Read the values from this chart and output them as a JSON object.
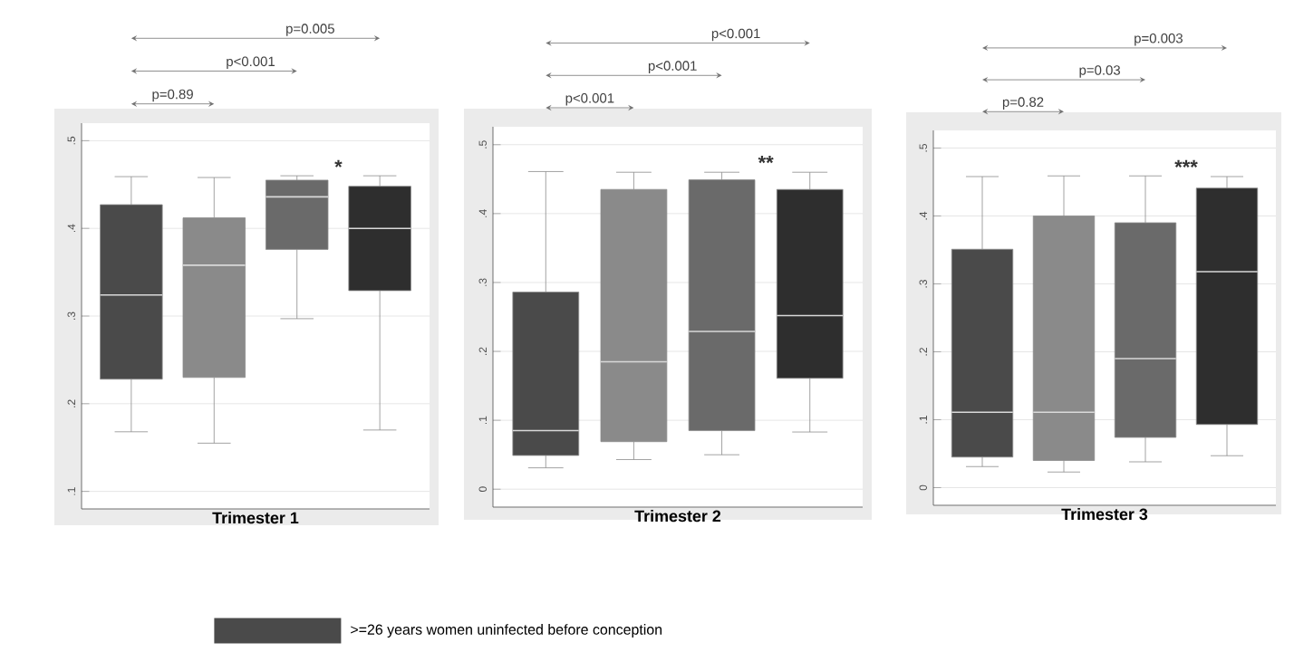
{
  "chart_data": [
    {
      "type": "box",
      "xlabel": "**Trimester 1**",
      "categories": [
        null
      ],
      "legend": "bottom",
      "grid": "y",
      "ylim": [
        0.08,
        0.52
      ],
      "yticks": [
        {
          "value": 0.1,
          "label": ".1"
        },
        {
          "value": 0.2,
          "label": ".2"
        },
        {
          "value": 0.3,
          "label": ".3"
        },
        {
          "value": 0.4,
          "label": ".4"
        },
        {
          "value": 0.5,
          "label": ".5"
        }
      ],
      "annotations": [
        "p=0.89",
        "p<0.001",
        "p=0.005",
        "*"
      ],
      "series": [
        {
          "name": ">=26 years women uninfected before conception",
          "color": "#4a4a4a",
          "boxes": [
            {
              "low": 0.168,
              "q1": 0.228,
              "median": 0.324,
              "q3": 0.427,
              "high": 0.459
            }
          ]
        },
        {
          "color": "#8a8a8a",
          "boxes": [
            {
              "low": 0.155,
              "q1": 0.23,
              "median": 0.358,
              "q3": 0.412,
              "high": 0.458
            }
          ]
        },
        {
          "color": "#6a6a6a",
          "boxes": [
            {
              "low": 0.297,
              "q1": 0.376,
              "median": 0.436,
              "q3": 0.455,
              "high": 0.46
            }
          ]
        },
        {
          "color": "#2e2e2e",
          "boxes": [
            {
              "low": 0.17,
              "q1": 0.329,
              "median": 0.4,
              "q3": 0.448,
              "high": 0.46
            }
          ]
        }
      ]
    },
    {
      "type": "box",
      "xlabel": "**Trimester 2**",
      "categories": [
        null
      ],
      "grid": "y",
      "ylim": [
        -0.026,
        0.526
      ],
      "yticks": [
        0,
        {
          "value": 0.1,
          "label": ".1"
        },
        {
          "value": 0.2,
          "label": ".2"
        },
        {
          "value": 0.3,
          "label": ".3"
        },
        {
          "value": 0.4,
          "label": ".4"
        },
        {
          "value": 0.5,
          "label": ".5"
        }
      ],
      "annotations": [
        "p<0.001",
        "p<0.001",
        "p<0.001",
        "**"
      ],
      "series": [
        {
          "color": "#4a4a4a",
          "boxes": [
            {
              "low": 0.031,
              "q1": 0.049,
              "median": 0.085,
              "q3": 0.286,
              "high": 0.461
            }
          ]
        },
        {
          "color": "#8a8a8a",
          "boxes": [
            {
              "low": 0.043,
              "q1": 0.069,
              "median": 0.185,
              "q3": 0.435,
              "high": 0.46
            }
          ]
        },
        {
          "color": "#6a6a6a",
          "boxes": [
            {
              "low": 0.05,
              "q1": 0.085,
              "median": 0.229,
              "q3": 0.449,
              "high": 0.46
            }
          ]
        },
        {
          "color": "#2e2e2e",
          "boxes": [
            {
              "low": 0.083,
              "q1": 0.161,
              "median": 0.252,
              "q3": 0.435,
              "high": 0.46
            }
          ]
        }
      ]
    },
    {
      "type": "box",
      "xlabel": "**Trimester 3**",
      "categories": [
        null
      ],
      "grid": "y",
      "ylim": [
        -0.026,
        0.526
      ],
      "yticks": [
        0,
        {
          "value": 0.1,
          "label": ".1"
        },
        {
          "value": 0.2,
          "label": ".2"
        },
        {
          "value": 0.3,
          "label": ".3"
        },
        {
          "value": 0.4,
          "label": ".4"
        },
        {
          "value": 0.5,
          "label": ".5"
        }
      ],
      "annotations": [
        "p=0.82",
        "p=0.03",
        "p=0.003",
        "***"
      ],
      "series": [
        {
          "color": "#4a4a4a",
          "boxes": [
            {
              "low": 0.031,
              "q1": 0.045,
              "median": 0.111,
              "q3": 0.351,
              "high": 0.458
            }
          ]
        },
        {
          "color": "#8a8a8a",
          "boxes": [
            {
              "low": 0.023,
              "q1": 0.04,
              "median": 0.111,
              "q3": 0.4,
              "high": 0.459
            }
          ]
        },
        {
          "color": "#6a6a6a",
          "boxes": [
            {
              "low": 0.038,
              "q1": 0.074,
              "median": 0.19,
              "q3": 0.39,
              "high": 0.459
            }
          ]
        },
        {
          "color": "#2e2e2e",
          "boxes": [
            {
              "low": 0.047,
              "q1": 0.093,
              "median": 0.318,
              "q3": 0.441,
              "high": 0.458
            }
          ]
        }
      ]
    }
  ]
}
